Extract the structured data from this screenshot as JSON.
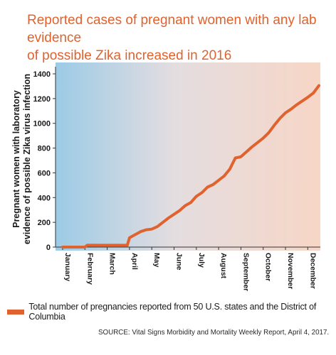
{
  "title_line1": "Reported cases of pregnant women with any lab evidence",
  "title_line2": "of possible Zika increased in 2016",
  "source": "SOURCE: Vital Signs Morbidity and Mortality Weekly Report, April 4, 2017.",
  "chart_data": {
    "type": "line",
    "title": "Reported cases of pregnant women with any lab evidence of possible Zika increased in 2016",
    "ylabel": "Pregnant women with laboratory evidence of possible Zika virus infection",
    "xlabel": "",
    "categories": [
      "January",
      "February",
      "March",
      "April",
      "May",
      "June",
      "July",
      "August",
      "September",
      "October",
      "November",
      "December"
    ],
    "ylim": [
      0,
      1400
    ],
    "yticks": [
      0,
      200,
      400,
      600,
      800,
      1000,
      1200,
      1400
    ],
    "xlim": [
      0,
      11.5
    ],
    "grid": false,
    "legend_position": "bottom",
    "series": [
      {
        "name": "Total number of pregnancies reported from 50 U.S. states and the District of Columbia",
        "color": "#e0622e",
        "x": [
          0,
          0.5,
          1,
          1.1,
          1.5,
          2,
          2.5,
          2.9,
          3,
          3.2,
          3.5,
          3.75,
          4,
          4.25,
          4.5,
          4.75,
          5,
          5.25,
          5.5,
          5.75,
          6,
          6.25,
          6.5,
          6.75,
          7,
          7.25,
          7.5,
          7.75,
          8,
          8.25,
          8.5,
          8.75,
          9,
          9.25,
          9.5,
          9.75,
          10,
          10.25,
          10.5,
          10.75,
          11,
          11.25,
          11.5
        ],
        "values": [
          0,
          0,
          0,
          15,
          15,
          15,
          15,
          15,
          75,
          95,
          125,
          140,
          145,
          165,
          200,
          235,
          265,
          295,
          335,
          360,
          410,
          440,
          485,
          505,
          540,
          575,
          630,
          720,
          730,
          770,
          810,
          845,
          880,
          925,
          985,
          1040,
          1085,
          1115,
          1150,
          1180,
          1210,
          1245,
          1305
        ]
      }
    ]
  }
}
